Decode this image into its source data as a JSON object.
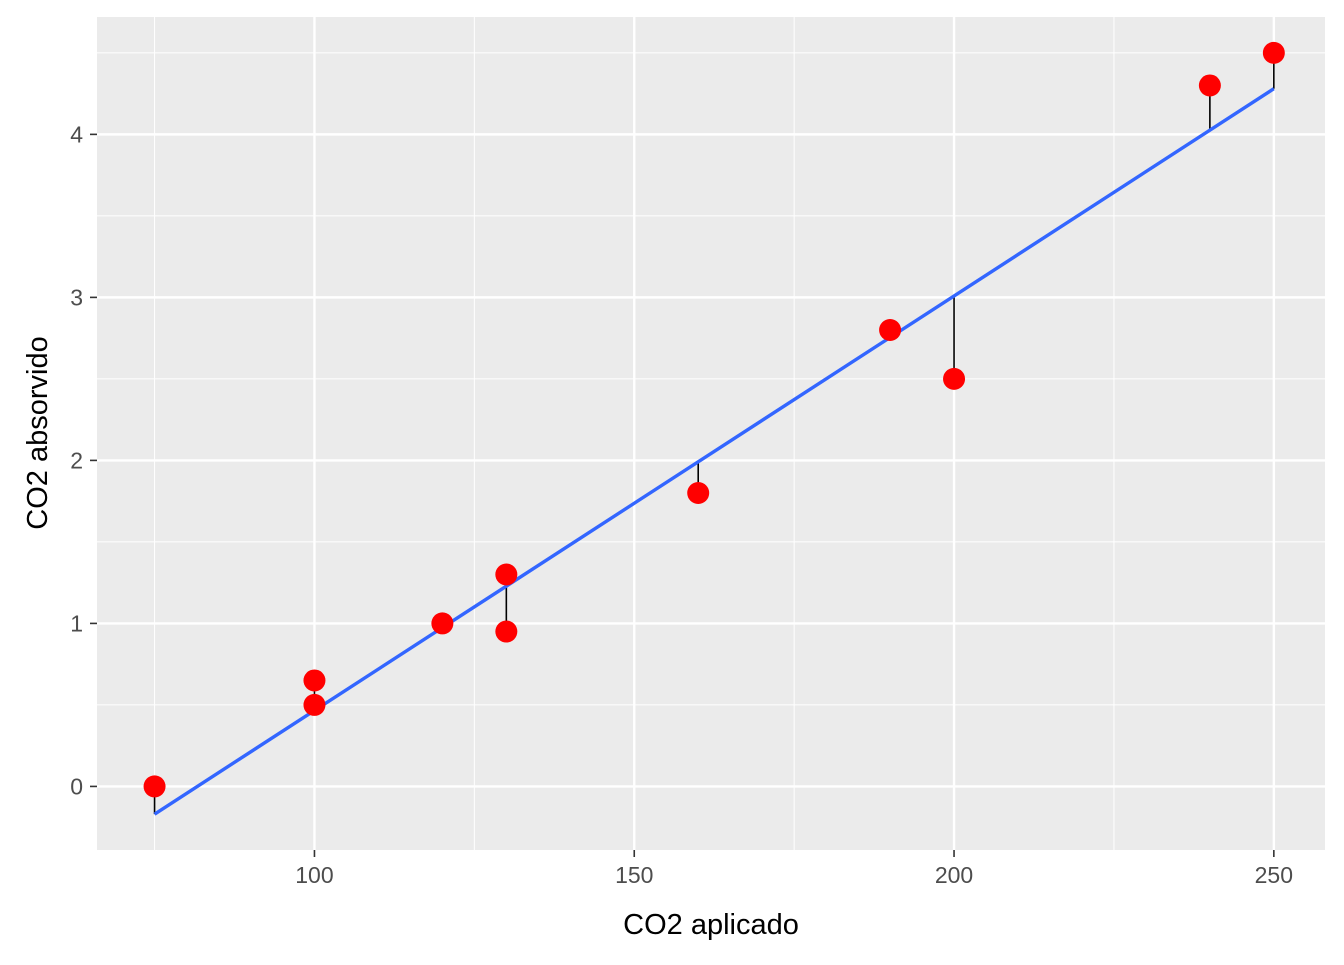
{
  "chart_data": {
    "type": "scatter",
    "title": "",
    "xlabel": "CO2 aplicado",
    "ylabel": "CO2 absorvido",
    "xlim": [
      66,
      258
    ],
    "ylim": [
      -0.39,
      4.72
    ],
    "xticks": [
      100,
      150,
      200,
      250
    ],
    "yticks": [
      0,
      1,
      2,
      3,
      4
    ],
    "grid": true,
    "legend": "none",
    "colors": {
      "panel": "#ebebeb",
      "grid": "#ffffff",
      "points": "#ff0000",
      "fit_line": "#3366ff",
      "residuals": "#000000",
      "tick_text": "#4d4d4d",
      "tick_marks": "#333333"
    },
    "series": [
      {
        "x": [
          75,
          100,
          100,
          120,
          130,
          130,
          160,
          190,
          200,
          240,
          250
        ],
        "y": [
          0.0,
          0.65,
          0.5,
          1.0,
          1.3,
          0.95,
          1.8,
          2.8,
          2.5,
          4.3,
          4.5
        ]
      }
    ],
    "fit_line": {
      "x": [
        75,
        250
      ],
      "y": [
        -0.17,
        4.28
      ]
    },
    "fitted": [
      -0.17,
      0.47,
      0.47,
      0.98,
      1.23,
      1.23,
      1.99,
      2.76,
      3.01,
      4.03,
      4.28
    ]
  }
}
